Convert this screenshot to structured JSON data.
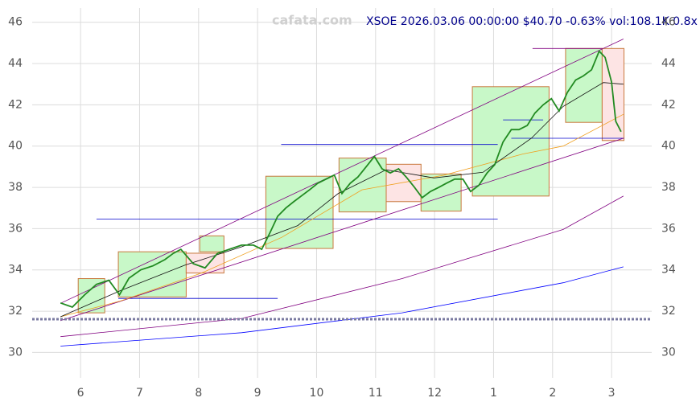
{
  "chart_data": {
    "type": "line",
    "title": "XSOE 2026.03.06 00:00:00 $40.70 -0.63% vol:108.1K 0.8x",
    "watermark": "cafata.com",
    "xlim": [
      5.18,
      15.68
    ],
    "ylim": [
      28.77,
      46.69
    ],
    "xticks": [
      6,
      7,
      8,
      9,
      10,
      11,
      12,
      {
        "value": 13,
        "label": "1"
      },
      {
        "value": 14,
        "label": "2"
      },
      {
        "value": 15,
        "label": "3"
      }
    ],
    "yticks": [
      30,
      32,
      34,
      36,
      38,
      40,
      42,
      44,
      46
    ],
    "grid": true,
    "boxes": [
      {
        "x": [
          5.96,
          6.41
        ],
        "y": [
          31.92,
          33.58
        ],
        "color": "#c8f8c8"
      },
      {
        "x": [
          6.64,
          7.79
        ],
        "y": [
          32.69,
          34.88
        ],
        "color": "#c8f8c8"
      },
      {
        "x": [
          7.79,
          8.43
        ],
        "y": [
          33.85,
          34.81
        ],
        "color": "#fde4e4"
      },
      {
        "x": [
          8.02,
          8.43
        ],
        "y": [
          34.88,
          35.65
        ],
        "color": "#c8f8c8"
      },
      {
        "x": [
          9.14,
          10.28
        ],
        "y": [
          35.04,
          38.54
        ],
        "color": "#c8f8c8"
      },
      {
        "x": [
          10.38,
          11.18
        ],
        "y": [
          36.81,
          39.42
        ],
        "color": "#c8f8c8"
      },
      {
        "x": [
          11.18,
          11.77
        ],
        "y": [
          37.31,
          39.12
        ],
        "color": "#fde4e4"
      },
      {
        "x": [
          11.77,
          12.45
        ],
        "y": [
          36.85,
          38.65
        ],
        "color": "#c8f8c8"
      },
      {
        "x": [
          12.64,
          13.94
        ],
        "y": [
          37.58,
          42.88
        ],
        "color": "#c8f8c8"
      },
      {
        "x": [
          14.22,
          14.84
        ],
        "y": [
          41.15,
          44.73
        ],
        "color": "#c8f8c8"
      },
      {
        "x": [
          14.84,
          15.21
        ],
        "y": [
          40.27,
          44.73
        ],
        "color": "#fde4e4"
      }
    ],
    "levels": [
      {
        "x": [
          6.27,
          13.07
        ],
        "value": 36.46,
        "color": "#0000cd"
      },
      {
        "x": [
          9.4,
          13.07
        ],
        "value": 40.08,
        "color": "#0000cd"
      },
      {
        "x": [
          6.64,
          9.34
        ],
        "value": 32.62,
        "color": "#0000cd"
      },
      {
        "x": [
          13.66,
          14.84
        ],
        "value": 44.73,
        "color": "#800080"
      },
      {
        "x": [
          13.16,
          13.84
        ],
        "value": 41.27,
        "color": "#0000cd"
      },
      {
        "x": [
          13.3,
          15.21
        ],
        "value": 40.38,
        "color": "#0000cd"
      }
    ],
    "series": [
      {
        "color": "#228b22",
        "x": [
          5.66,
          5.86,
          6.07,
          6.27,
          6.48,
          6.66,
          6.82,
          7.02,
          7.23,
          7.43,
          7.57,
          7.7,
          7.91,
          8.11,
          8.32,
          8.52,
          8.73,
          8.93,
          9.07,
          9.21,
          9.34,
          9.48,
          9.61,
          9.75,
          9.89,
          10.02,
          10.16,
          10.3,
          10.43,
          10.57,
          10.7,
          10.84,
          10.98,
          11.11,
          11.25,
          11.39,
          11.52,
          11.66,
          11.79,
          11.93,
          12.07,
          12.2,
          12.34,
          12.48,
          12.61,
          12.75,
          12.89,
          13.02,
          13.16,
          13.3,
          13.43,
          13.57,
          13.7,
          13.84,
          13.98,
          14.11,
          14.25,
          14.39,
          14.52,
          14.66,
          14.79,
          14.89,
          15.0,
          15.07,
          15.16
        ],
        "values": [
          32.4,
          32.2,
          32.8,
          33.3,
          33.5,
          32.8,
          33.6,
          34.0,
          34.2,
          34.5,
          34.8,
          35.0,
          34.3,
          34.1,
          34.8,
          35.0,
          35.2,
          35.2,
          35.0,
          35.8,
          36.6,
          37.0,
          37.3,
          37.6,
          37.9,
          38.2,
          38.4,
          38.6,
          37.7,
          38.2,
          38.5,
          39.0,
          39.5,
          38.9,
          38.7,
          38.9,
          38.5,
          38.0,
          37.5,
          37.8,
          38.0,
          38.2,
          38.4,
          38.4,
          37.8,
          38.1,
          38.7,
          39.1,
          40.2,
          40.8,
          40.8,
          41.0,
          41.6,
          42.0,
          42.3,
          41.7,
          42.6,
          43.2,
          43.4,
          43.7,
          44.6,
          44.3,
          43.1,
          41.2,
          40.7
        ]
      },
      {
        "color": "#111111",
        "x": [
          5.66,
          6.68,
          7.77,
          8.73,
          9.68,
          10.36,
          11.18,
          11.99,
          12.82,
          13.64,
          14.18,
          14.86,
          15.2
        ],
        "values": [
          31.73,
          33.0,
          34.23,
          35.12,
          36.15,
          37.69,
          38.85,
          38.46,
          38.73,
          40.38,
          41.92,
          43.08,
          43.0
        ]
      },
      {
        "color": "#f0a020",
        "x": [
          5.66,
          6.68,
          8.05,
          9.41,
          10.77,
          12.14,
          13.5,
          14.18,
          15.2
        ],
        "values": [
          31.73,
          32.5,
          33.85,
          35.58,
          37.88,
          38.58,
          39.62,
          40.0,
          41.54
        ]
      },
      {
        "color": "#800080",
        "x": [
          5.66,
          15.2
        ],
        "values": [
          32.38,
          45.19
        ]
      },
      {
        "color": "#800080",
        "x": [
          5.66,
          15.2
        ],
        "values": [
          31.54,
          40.38
        ]
      },
      {
        "color": "#800080",
        "x": [
          5.66,
          8.73,
          11.45,
          14.18,
          15.2
        ],
        "values": [
          30.77,
          31.65,
          33.58,
          35.96,
          37.58
        ]
      },
      {
        "color": "#0000ff",
        "x": [
          5.66,
          8.73,
          11.45,
          14.18,
          15.2
        ],
        "values": [
          30.31,
          30.96,
          31.92,
          33.38,
          34.15
        ]
      }
    ]
  }
}
